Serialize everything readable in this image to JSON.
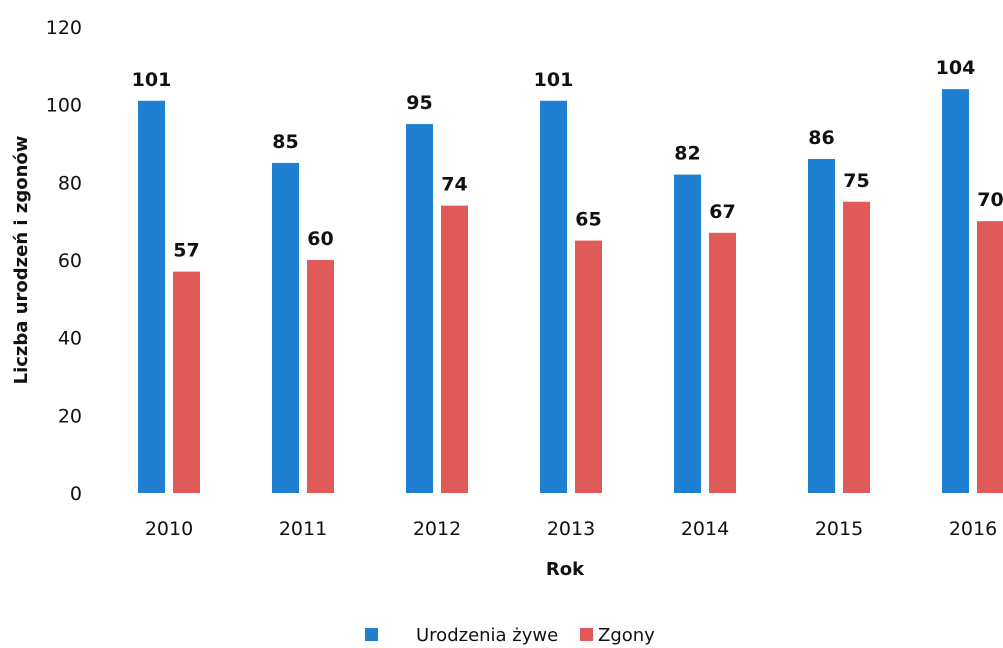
{
  "chart_data": {
    "type": "bar",
    "categories": [
      "2010",
      "2011",
      "2012",
      "2013",
      "2014",
      "2015",
      "2016"
    ],
    "series": [
      {
        "name": "Urodzenia żywe",
        "values": [
          101,
          85,
          95,
          101,
          82,
          86,
          104
        ],
        "color": "#1f7fd1"
      },
      {
        "name": "Zgony",
        "values": [
          57,
          60,
          74,
          65,
          67,
          75,
          70
        ],
        "color": "#e05a5a"
      }
    ],
    "xlabel": "Rok",
    "ylabel": "Liczba urodzeń i zgonów",
    "ylim": [
      0,
      120
    ],
    "yticks": [
      0,
      20,
      40,
      60,
      80,
      100,
      120
    ],
    "grid": false,
    "legend_position": "bottom"
  }
}
